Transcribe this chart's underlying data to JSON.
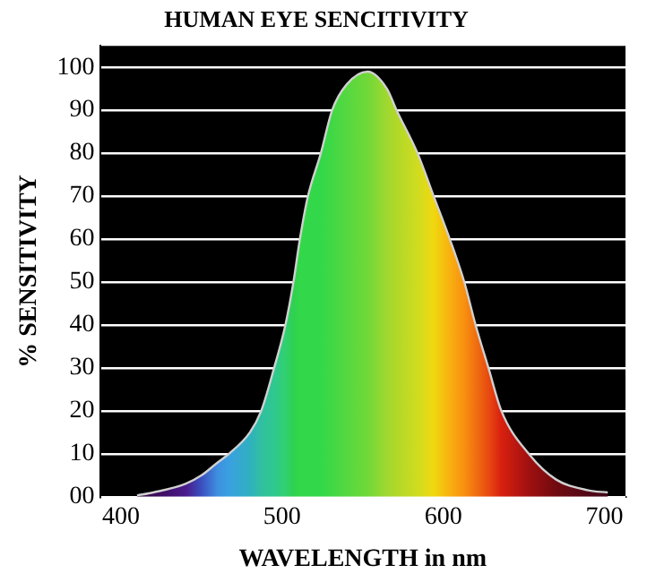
{
  "chart_data": {
    "type": "area",
    "title": "HUMAN EYE SENCITIVITY",
    "xlabel": "WAVELENGTH in nm",
    "ylabel": "% SENSITIVITY",
    "x": [
      410,
      420,
      440,
      450,
      460,
      467,
      480,
      487,
      495,
      502,
      507,
      511,
      516,
      524,
      531,
      540,
      553,
      565,
      571,
      584,
      594,
      604,
      613,
      620,
      628,
      636,
      653,
      670,
      690,
      702
    ],
    "series": [
      {
        "color": "#d0d0d0",
        "values": [
          0.3,
          1,
          3,
          5,
          8,
          10,
          15,
          20,
          30,
          40,
          50,
          60,
          70,
          80,
          90,
          96,
          99,
          95,
          90,
          80,
          70,
          60,
          50,
          40,
          30,
          20,
          10,
          4,
          1.5,
          1
        ],
        "colors": [
          "#2a0030",
          "#3a0a55",
          "#4a1a8a",
          "#3a50c0",
          "#3f8fe0",
          "#3aa0e0",
          "#30b0c0",
          "#30c0a0",
          "#30c890",
          "#30d070",
          "#30d050",
          "#33d84a",
          "#33d84a",
          "#33d84a",
          "#40d845",
          "#55d840",
          "#70d838",
          "#a0d830",
          "#b0d828",
          "#d0dc20",
          "#f0d810",
          "#f8b010",
          "#f89010",
          "#f07010",
          "#e84a10",
          "#d82010",
          "#a01010",
          "#700a10",
          "#500818",
          "#400818"
        ]
      }
    ],
    "xlim": [
      387,
      713
    ],
    "xticks": [
      400,
      500,
      600,
      700
    ],
    "ylim": [
      0,
      105
    ],
    "yticks": [
      {
        "value": 0,
        "label": "00"
      },
      10,
      20,
      30,
      40,
      50,
      60,
      70,
      80,
      90,
      100
    ],
    "grid": "y",
    "legend": false
  }
}
